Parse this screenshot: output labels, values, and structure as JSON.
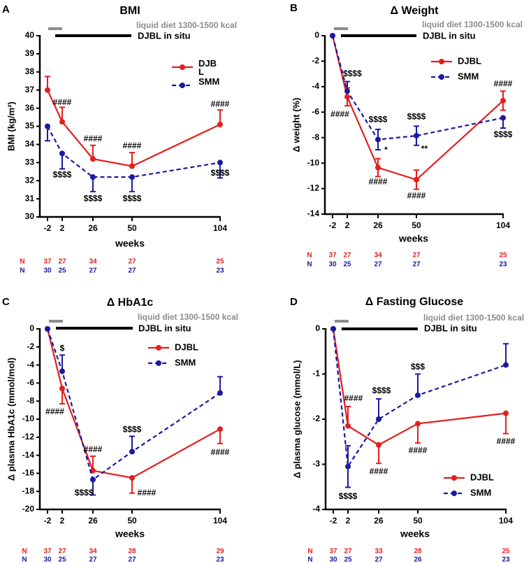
{
  "colors": {
    "DJBL": "#e41e1e",
    "SMM": "#1a1aa0",
    "diet_bar": "#8c8c8c",
    "djbl_bar": "#000000"
  },
  "chart_data": [
    {
      "letter": "A",
      "title": "BMI",
      "type": "line",
      "xlabel": "weeks",
      "ylabel": "BMI (kg/m²)",
      "x": [
        -2,
        2,
        26,
        50,
        104
      ],
      "ylim": [
        30,
        40
      ],
      "yticks": [
        30,
        31,
        32,
        33,
        34,
        35,
        36,
        37,
        38,
        39,
        40
      ],
      "diet_label": "liquid diet 1300-1500 kcal",
      "djbl_label": "DJBL in situ",
      "legend_position": "top-right",
      "series": [
        {
          "name": "DJBL",
          "style": "solid",
          "y": [
            37.0,
            35.25,
            33.2,
            32.8,
            35.1
          ],
          "err": [
            0.75,
            0.8,
            0.75,
            0.75,
            0.8
          ],
          "err_dir": [
            "up",
            "up",
            "up",
            "up",
            "up"
          ],
          "n": [
            37,
            27,
            34,
            27,
            25
          ]
        },
        {
          "name": "SMM",
          "style": "dashed",
          "y": [
            35.0,
            33.5,
            32.2,
            32.2,
            33.0
          ],
          "err": [
            0.8,
            0.85,
            0.8,
            0.8,
            0.85
          ],
          "err_dir": [
            "down",
            "down",
            "down",
            "down",
            "down"
          ],
          "n": [
            30,
            25,
            27,
            27,
            23
          ]
        }
      ],
      "n_label": "N",
      "annotations": [
        {
          "text": "####",
          "at": [
            2,
            36.3
          ]
        },
        {
          "text": "####",
          "at": [
            26,
            34.3
          ]
        },
        {
          "text": "####",
          "at": [
            50,
            33.9
          ]
        },
        {
          "text": "####",
          "at": [
            104,
            36.2
          ]
        },
        {
          "text": "$$$$",
          "at": [
            2,
            32.3
          ]
        },
        {
          "text": "$$$$",
          "at": [
            26,
            31.0
          ]
        },
        {
          "text": "$$$$",
          "at": [
            50,
            31.0
          ]
        },
        {
          "text": "$$$$",
          "at": [
            104,
            32.4
          ]
        }
      ]
    },
    {
      "letter": "B",
      "title": "Δ Weight",
      "type": "line",
      "xlabel": "weeks",
      "ylabel": "Δ weight (%)",
      "x": [
        -2,
        2,
        26,
        50,
        104
      ],
      "ylim": [
        -14,
        0
      ],
      "yticks": [
        -14,
        -12,
        -10,
        -8,
        -6,
        -4,
        -2,
        0
      ],
      "diet_label": "liquid diet 1300-1500 kcal",
      "djbl_label": "DJBL in situ",
      "legend_position": "top-right",
      "series": [
        {
          "name": "DJBL",
          "style": "solid",
          "y": [
            0,
            -4.8,
            -10.35,
            -11.3,
            -5.1
          ],
          "err": [
            0,
            0.7,
            0.7,
            0.75,
            0.75
          ],
          "err_dir": [
            "none",
            "both",
            "both",
            "both",
            "both"
          ],
          "n": [
            37,
            27,
            34,
            27,
            25
          ]
        },
        {
          "name": "SMM",
          "style": "dashed",
          "y": [
            0,
            -4.35,
            -8.15,
            -7.85,
            -6.45
          ],
          "err": [
            0,
            0.75,
            0.8,
            0.75,
            0.8
          ],
          "err_dir": [
            "none",
            "up",
            "both",
            "both",
            "down"
          ],
          "n": [
            30,
            25,
            27,
            27,
            23
          ]
        }
      ],
      "n_label": "N",
      "annotations": [
        {
          "text": "$$$$",
          "at": [
            6,
            -3.0
          ]
        },
        {
          "text": "####",
          "at": [
            0,
            -6.2
          ]
        },
        {
          "text": "$$$$",
          "at": [
            26,
            -6.6
          ]
        },
        {
          "text": "$$$$",
          "at": [
            50,
            -6.4
          ]
        },
        {
          "text": "*",
          "at": [
            31,
            -9.0
          ]
        },
        {
          "text": "**",
          "at": [
            55,
            -8.9
          ]
        },
        {
          "text": "####",
          "at": [
            26,
            -11.5
          ]
        },
        {
          "text": "####",
          "at": [
            50,
            -12.6
          ]
        },
        {
          "text": "####",
          "at": [
            104,
            -3.8
          ]
        },
        {
          "text": "$$$$",
          "at": [
            104,
            -7.8
          ]
        }
      ]
    },
    {
      "letter": "C",
      "title": "Δ HbA1c",
      "type": "line",
      "xlabel": "weeks",
      "ylabel": "Δ plasma HbA1c (mmol/mol)",
      "x": [
        -2,
        2,
        26,
        50,
        104
      ],
      "ylim": [
        -20,
        0
      ],
      "yticks": [
        -20,
        -18,
        -16,
        -14,
        -12,
        -10,
        -8,
        -6,
        -4,
        -2,
        0
      ],
      "diet_label": "liquid diet 1300-1500 kcal",
      "djbl_label": "DJBL in situ",
      "legend_position": "top-center",
      "series": [
        {
          "name": "DJBL",
          "style": "solid",
          "y": [
            0,
            -6.6,
            -15.7,
            -16.5,
            -11.1
          ],
          "err": [
            0,
            1.7,
            1.6,
            1.7,
            1.6
          ],
          "err_dir": [
            "none",
            "down",
            "up",
            "down",
            "down"
          ],
          "n": [
            37,
            27,
            34,
            28,
            29
          ]
        },
        {
          "name": "SMM",
          "style": "dashed",
          "y": [
            0,
            -4.7,
            -16.7,
            -13.6,
            -7.1
          ],
          "err": [
            0,
            1.8,
            1.7,
            1.7,
            1.8
          ],
          "err_dir": [
            "none",
            "up",
            "down",
            "up",
            "up"
          ],
          "n": [
            30,
            25,
            27,
            27,
            23
          ]
        }
      ],
      "n_label": "N",
      "annotations": [
        {
          "text": "$",
          "at": [
            2,
            -2.2
          ]
        },
        {
          "text": "####",
          "at": [
            0,
            -9.2
          ]
        },
        {
          "text": "####",
          "at": [
            26,
            -13.4
          ]
        },
        {
          "text": "$$$$",
          "at": [
            19,
            -18.2
          ]
        },
        {
          "text": "$$$$",
          "at": [
            50,
            -11.2
          ]
        },
        {
          "text": "####",
          "at": [
            59,
            -18.2
          ]
        },
        {
          "text": "####",
          "at": [
            104,
            -13.7
          ]
        }
      ]
    },
    {
      "letter": "D",
      "title": "Δ Fasting Glucose",
      "type": "line",
      "xlabel": "weeks",
      "ylabel": "Δ plasma glucose (mmol/L)",
      "x": [
        -2,
        2,
        26,
        50,
        104
      ],
      "ylim": [
        -4,
        0
      ],
      "yticks": [
        -4,
        -3,
        -2,
        -1,
        0
      ],
      "diet_label": "liquid diet 1300-1500 kcal",
      "djbl_label": "DJBL in situ",
      "legend_position": "bottom-right",
      "series": [
        {
          "name": "DJBL",
          "style": "solid",
          "y": [
            0,
            -2.15,
            -2.57,
            -2.1,
            -1.87
          ],
          "err": [
            0,
            0.43,
            0.41,
            0.43,
            0.45
          ],
          "err_dir": [
            "none",
            "up",
            "down",
            "down",
            "down"
          ],
          "n": [
            37,
            27,
            33,
            28,
            25
          ]
        },
        {
          "name": "SMM",
          "style": "dashed",
          "y": [
            0,
            -3.05,
            -2.0,
            -1.47,
            -0.8
          ],
          "err": [
            0,
            0.46,
            0.45,
            0.47,
            0.47
          ],
          "err_dir": [
            "none",
            "both",
            "up",
            "up",
            "up"
          ],
          "n": [
            30,
            25,
            27,
            26,
            23
          ]
        }
      ],
      "n_label": "N",
      "annotations": [
        {
          "text": "####",
          "at": [
            9,
            -1.55
          ]
        },
        {
          "text": "$$$$",
          "at": [
            2,
            -3.72
          ]
        },
        {
          "text": "$$$$",
          "at": [
            26,
            -1.38
          ]
        },
        {
          "text": "####",
          "at": [
            26,
            -3.17
          ]
        },
        {
          "text": "$$$",
          "at": [
            50,
            -0.85
          ]
        },
        {
          "text": "####",
          "at": [
            50,
            -2.7
          ]
        },
        {
          "text": "####",
          "at": [
            104,
            -2.5
          ]
        }
      ]
    }
  ]
}
